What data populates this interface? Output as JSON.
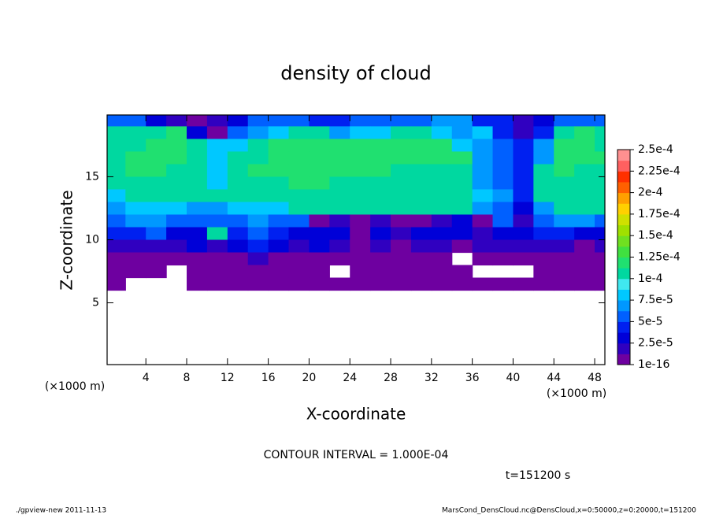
{
  "chart_data": {
    "type": "heatmap",
    "title": "density of cloud",
    "x_label": "X-coordinate",
    "y_label": "Z-coordinate",
    "x_unit": "(×1000 m)",
    "y_unit": "(×1000 m)",
    "annotation": "CONTOUR INTERVAL = 1.000E-04",
    "time_label": "t=151200 s",
    "footer_left": "./gpview-new   2011-11-13",
    "footer_right": "MarsCond_DensCloud.nc@DensCloud,x=0:50000,z=0:20000,t=151200",
    "xlim": [
      0.2,
      49
    ],
    "ylim": [
      0.1,
      19.9
    ],
    "xticks": [
      4,
      8,
      12,
      16,
      20,
      24,
      28,
      32,
      36,
      40,
      44,
      48
    ],
    "yticks": [
      5,
      10,
      15
    ],
    "x": [
      1,
      3,
      5,
      7,
      9,
      11,
      13,
      15,
      17,
      19,
      21,
      23,
      25,
      27,
      29,
      31,
      33,
      35,
      37,
      39,
      41,
      43,
      45,
      47,
      49
    ],
    "z": [
      19.5,
      18.5,
      17.5,
      16.5,
      15.5,
      14.5,
      13.5,
      12.5,
      11.5,
      10.5,
      9.5,
      8.5,
      7.5,
      6.5
    ],
    "values": [
      [
        6e-05,
        6e-05,
        3e-05,
        2e-05,
        5e-06,
        2e-05,
        3e-05,
        6e-05,
        6e-05,
        6e-05,
        4.5e-05,
        4.5e-05,
        6e-05,
        6e-05,
        6e-05,
        6e-05,
        7e-05,
        7e-05,
        4.5e-05,
        4.5e-05,
        2e-05,
        3e-05,
        6e-05,
        6e-05,
        6e-05
      ],
      [
        0.000105,
        0.000105,
        0.000105,
        0.000115,
        3e-05,
        5e-06,
        6e-05,
        7e-05,
        8.5e-05,
        0.000105,
        0.000105,
        7e-05,
        8.5e-05,
        8.5e-05,
        0.000105,
        0.000105,
        8.5e-05,
        7e-05,
        8.5e-05,
        4.5e-05,
        2e-05,
        4.5e-05,
        0.000105,
        0.000115,
        0.000105
      ],
      [
        0.000105,
        0.000105,
        0.000115,
        0.000115,
        0.000105,
        8.5e-05,
        8.5e-05,
        0.000105,
        0.000115,
        0.000115,
        0.000115,
        0.000115,
        0.000115,
        0.000115,
        0.000115,
        0.000115,
        0.000115,
        8.5e-05,
        7e-05,
        6e-05,
        4.5e-05,
        7e-05,
        0.000115,
        0.000115,
        0.000105
      ],
      [
        0.000105,
        0.000115,
        0.000115,
        0.000115,
        0.000105,
        8.5e-05,
        0.000105,
        0.000105,
        0.000115,
        0.000115,
        0.000115,
        0.000115,
        0.000115,
        0.000115,
        0.000115,
        0.000115,
        0.000115,
        0.000115,
        7e-05,
        6e-05,
        4.5e-05,
        7e-05,
        0.000115,
        0.000115,
        0.000115
      ],
      [
        0.000105,
        0.000115,
        0.000115,
        0.000105,
        0.000105,
        8.5e-05,
        0.000105,
        0.000115,
        0.000115,
        0.000115,
        0.000115,
        0.000115,
        0.000115,
        0.000115,
        0.000105,
        0.000105,
        0.000105,
        0.000105,
        7e-05,
        6e-05,
        4.5e-05,
        0.000105,
        0.000115,
        0.000105,
        0.000105
      ],
      [
        0.000105,
        0.000105,
        0.000105,
        0.000105,
        0.000105,
        8.5e-05,
        0.000105,
        0.000105,
        0.000105,
        0.000115,
        0.000115,
        0.000105,
        0.000105,
        0.000105,
        0.000105,
        0.000105,
        0.000105,
        0.000105,
        7e-05,
        6e-05,
        4.5e-05,
        0.000105,
        0.000105,
        0.000105,
        0.000105
      ],
      [
        8.5e-05,
        0.000105,
        0.000105,
        0.000105,
        0.000105,
        0.000105,
        0.000105,
        0.000105,
        0.000105,
        0.000105,
        0.000105,
        0.000105,
        0.000105,
        0.000105,
        0.000105,
        0.000105,
        0.000105,
        0.000105,
        8.5e-05,
        7e-05,
        4.5e-05,
        0.000105,
        0.000105,
        0.000105,
        0.000105
      ],
      [
        7e-05,
        8.5e-05,
        8.5e-05,
        8.5e-05,
        7e-05,
        7e-05,
        8.5e-05,
        8.5e-05,
        8.5e-05,
        0.000105,
        0.000105,
        0.000105,
        0.000105,
        0.000105,
        0.000105,
        0.000105,
        0.000105,
        0.000105,
        7e-05,
        6e-05,
        3e-05,
        7e-05,
        0.000105,
        0.000105,
        0.000105
      ],
      [
        6e-05,
        7e-05,
        7e-05,
        6e-05,
        6e-05,
        6e-05,
        6e-05,
        7e-05,
        6e-05,
        6e-05,
        5e-06,
        2e-05,
        5e-06,
        2e-05,
        5e-06,
        5e-06,
        2e-05,
        3e-05,
        5e-06,
        6e-05,
        2e-05,
        6e-05,
        7e-05,
        7e-05,
        6e-05
      ],
      [
        4.5e-05,
        4.5e-05,
        6e-05,
        3e-05,
        3e-05,
        0.000105,
        4.5e-05,
        6e-05,
        4.5e-05,
        3e-05,
        3e-05,
        3e-05,
        5e-06,
        3e-05,
        2e-05,
        3e-05,
        3e-05,
        3e-05,
        2e-05,
        3e-05,
        3e-05,
        4.5e-05,
        4.5e-05,
        3e-05,
        3e-05
      ],
      [
        2e-05,
        2e-05,
        2e-05,
        2e-05,
        3e-05,
        2e-05,
        3e-05,
        4.5e-05,
        3e-05,
        2e-05,
        3e-05,
        2e-05,
        5e-06,
        2e-05,
        5e-06,
        2e-05,
        2e-05,
        5e-06,
        2e-05,
        2e-05,
        2e-05,
        2e-05,
        2e-05,
        5e-06,
        2e-05
      ],
      [
        5e-06,
        5e-06,
        5e-06,
        5e-06,
        5e-06,
        5e-06,
        5e-06,
        2e-05,
        5e-06,
        5e-06,
        5e-06,
        5e-06,
        5e-06,
        5e-06,
        5e-06,
        5e-06,
        5e-06,
        null,
        5e-06,
        5e-06,
        5e-06,
        5e-06,
        5e-06,
        5e-06,
        5e-06
      ],
      [
        5e-06,
        5e-06,
        5e-06,
        null,
        5e-06,
        5e-06,
        5e-06,
        5e-06,
        5e-06,
        5e-06,
        5e-06,
        null,
        5e-06,
        5e-06,
        5e-06,
        5e-06,
        5e-06,
        5e-06,
        null,
        null,
        null,
        5e-06,
        5e-06,
        5e-06,
        5e-06
      ],
      [
        5e-06,
        null,
        null,
        null,
        5e-06,
        5e-06,
        5e-06,
        5e-06,
        5e-06,
        5e-06,
        5e-06,
        5e-06,
        5e-06,
        5e-06,
        5e-06,
        5e-06,
        5e-06,
        5e-06,
        5e-06,
        5e-06,
        5e-06,
        5e-06,
        5e-06,
        5e-06,
        5e-06
      ]
    ],
    "colorbar": {
      "ticks": [
        {
          "value": 1e-16,
          "label": "1e-16"
        },
        {
          "value": 2.5e-05,
          "label": "2.5e-5"
        },
        {
          "value": 5e-05,
          "label": "5e-5"
        },
        {
          "value": 7.5e-05,
          "label": "7.5e-5"
        },
        {
          "value": 0.0001,
          "label": "1e-4"
        },
        {
          "value": 0.000125,
          "label": "1.25e-4"
        },
        {
          "value": 0.00015,
          "label": "1.5e-4"
        },
        {
          "value": 0.000175,
          "label": "1.75e-4"
        },
        {
          "value": 0.0002,
          "label": "2e-4"
        },
        {
          "value": 0.000225,
          "label": "2.25e-4"
        },
        {
          "value": 0.00025,
          "label": "2.5e-4"
        }
      ],
      "colors": [
        "#6e00a0",
        "#3000c0",
        "#0000d8",
        "#0020f0",
        "#0060ff",
        "#0098ff",
        "#00c8ff",
        "#40e8f0",
        "#00d8a0",
        "#20e070",
        "#40e040",
        "#70e020",
        "#a0e000",
        "#d0e000",
        "#ffd000",
        "#ffa000",
        "#ff6000",
        "#ff3000",
        "#ff6060",
        "#ff9090"
      ]
    }
  }
}
